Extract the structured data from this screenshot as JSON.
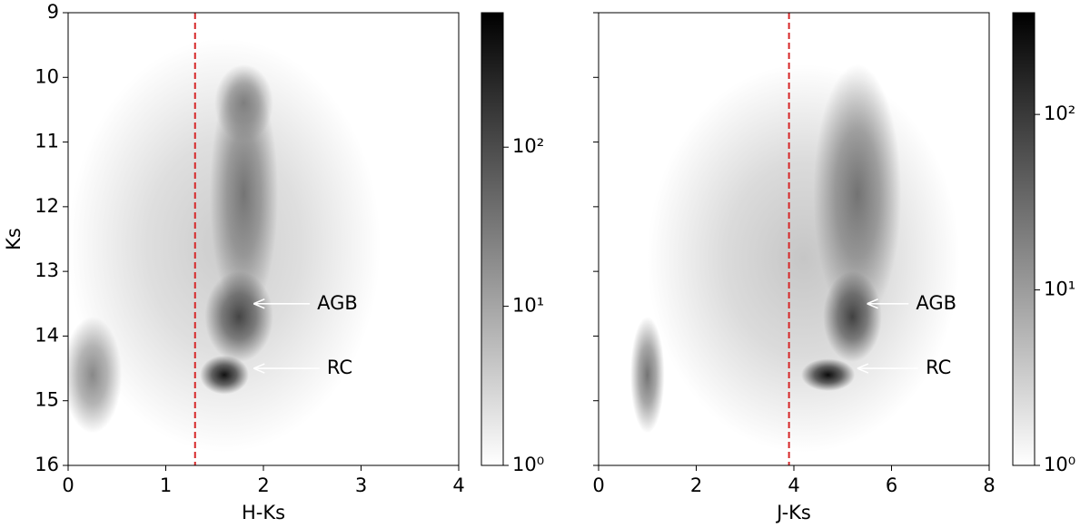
{
  "chart_data": [
    {
      "type": "hexbin",
      "xlabel": "H-Ks",
      "ylabel": "Ks",
      "xlim": [
        0,
        4
      ],
      "ylim": [
        16,
        9
      ],
      "xticks": [
        0,
        1,
        2,
        3,
        4
      ],
      "yticks": [
        9,
        10,
        11,
        12,
        13,
        14,
        15,
        16
      ],
      "ytick_labels": true,
      "density": [
        {
          "x": 1.6,
          "y": 12.6,
          "sx": 1.6,
          "sy": 3.2,
          "count": 4
        },
        {
          "x": 0.25,
          "y": 14.6,
          "sx": 0.3,
          "sy": 0.9,
          "count": 25
        },
        {
          "x": 1.8,
          "y": 11.8,
          "sx": 0.35,
          "sy": 1.9,
          "count": 40
        },
        {
          "x": 1.8,
          "y": 10.4,
          "sx": 0.3,
          "sy": 0.6,
          "count": 30
        },
        {
          "x": 1.75,
          "y": 13.7,
          "sx": 0.35,
          "sy": 0.7,
          "count": 150
        },
        {
          "x": 1.6,
          "y": 14.6,
          "sx": 0.25,
          "sy": 0.3,
          "count": 600
        }
      ],
      "vline": {
        "x": 1.3,
        "color": "#d62728"
      },
      "annotations": [
        {
          "text": "AGB",
          "x": 1.9,
          "y": 13.5,
          "text_x": 2.55,
          "text_y": 13.5
        },
        {
          "text": "RC",
          "x": 1.9,
          "y": 14.5,
          "text_x": 2.65,
          "text_y": 14.5
        }
      ],
      "colorbar": {
        "scale": "log",
        "lim": [
          1,
          700
        ],
        "ticks": [
          {
            "value": 1,
            "label": "10⁰"
          },
          {
            "value": 10,
            "label": "10¹"
          },
          {
            "value": 100,
            "label": "10²"
          }
        ]
      }
    },
    {
      "type": "hexbin",
      "xlabel": "J-Ks",
      "xlim": [
        0,
        8
      ],
      "ylim": [
        16,
        9
      ],
      "xticks": [
        0,
        2,
        4,
        6,
        8
      ],
      "yticks": [
        9,
        10,
        11,
        12,
        13,
        14,
        15,
        16
      ],
      "ytick_labels": false,
      "density": [
        {
          "x": 4.2,
          "y": 12.8,
          "sx": 3.2,
          "sy": 3,
          "count": 4
        },
        {
          "x": 1.0,
          "y": 14.6,
          "sx": 0.35,
          "sy": 0.9,
          "count": 30
        },
        {
          "x": 5.3,
          "y": 11.8,
          "sx": 0.9,
          "sy": 2,
          "count": 30
        },
        {
          "x": 5.2,
          "y": 13.7,
          "sx": 0.6,
          "sy": 0.7,
          "count": 100
        },
        {
          "x": 4.7,
          "y": 14.6,
          "sx": 0.55,
          "sy": 0.25,
          "count": 380
        }
      ],
      "vline": {
        "x": 3.9,
        "color": "#d62728"
      },
      "annotations": [
        {
          "text": "AGB",
          "x": 5.5,
          "y": 13.5,
          "text_x": 6.5,
          "text_y": 13.5
        },
        {
          "text": "RC",
          "x": 5.3,
          "y": 14.5,
          "text_x": 6.7,
          "text_y": 14.5
        }
      ],
      "colorbar": {
        "scale": "log",
        "lim": [
          1,
          380
        ],
        "ticks": [
          {
            "value": 1,
            "label": "10⁰"
          },
          {
            "value": 10,
            "label": "10¹"
          },
          {
            "value": 100,
            "label": "10²"
          }
        ]
      }
    }
  ]
}
